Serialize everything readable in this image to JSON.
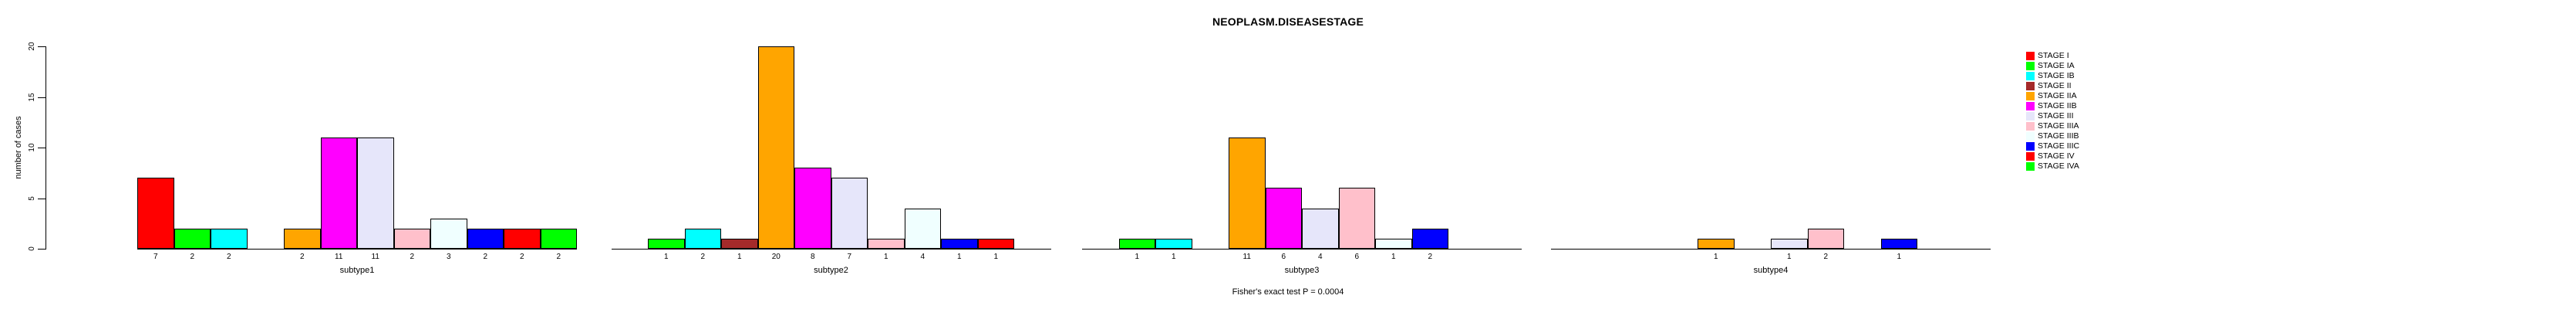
{
  "figure": {
    "title": "NEOPLASM.DISEASESTAGE",
    "footnote": "Fisher's exact test P = 0.0004"
  },
  "chart_data": {
    "type": "bar",
    "title": "NEOPLASM.DISEASESTAGE",
    "ylabel": "number of cases",
    "ylim": [
      0,
      20
    ],
    "yticks": [
      0,
      5,
      10,
      15,
      20
    ],
    "grid": false,
    "legend_position": "right-outside",
    "footnote": "Fisher's exact test P = 0.0004",
    "stages": [
      {
        "label": "STAGE I",
        "color": "#FF0000"
      },
      {
        "label": "STAGE IA",
        "color": "#00FF00"
      },
      {
        "label": "STAGE IB",
        "color": "#00FFFF"
      },
      {
        "label": "STAGE II",
        "color": "#A52A2A"
      },
      {
        "label": "STAGE IIA",
        "color": "#FFA500"
      },
      {
        "label": "STAGE IIB",
        "color": "#FF00FF"
      },
      {
        "label": "STAGE III",
        "color": "#E6E6FA"
      },
      {
        "label": "STAGE IIIA",
        "color": "#FFC0CB"
      },
      {
        "label": "STAGE IIIB",
        "color": "#F0FFFF"
      },
      {
        "label": "STAGE IIIC",
        "color": "#0000FF"
      },
      {
        "label": "STAGE IV",
        "color": "#FF0000"
      },
      {
        "label": "STAGE IVA",
        "color": "#00FF00"
      }
    ],
    "groups": [
      {
        "label": "subtype1",
        "values": [
          7,
          2,
          2,
          0,
          2,
          11,
          11,
          2,
          3,
          2,
          2,
          2
        ]
      },
      {
        "label": "subtype2",
        "values": [
          0,
          1,
          2,
          1,
          20,
          8,
          7,
          1,
          4,
          1,
          1,
          0
        ]
      },
      {
        "label": "subtype3",
        "values": [
          0,
          1,
          1,
          0,
          11,
          6,
          4,
          6,
          1,
          2,
          0,
          0
        ]
      },
      {
        "label": "subtype4",
        "values": [
          0,
          0,
          0,
          0,
          1,
          0,
          1,
          2,
          0,
          1,
          0,
          0
        ]
      }
    ]
  }
}
